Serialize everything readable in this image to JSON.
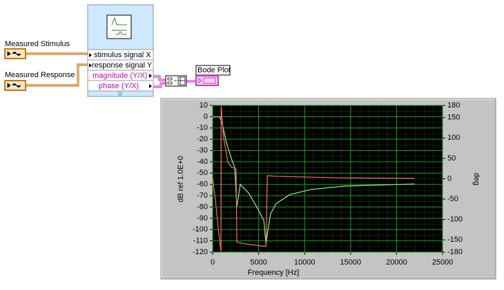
{
  "diagram": {
    "controls": [
      {
        "label": "Measured Stimulus"
      },
      {
        "label": "Measured Response"
      }
    ],
    "node_terminals": [
      "stimulus signal X",
      "response signal Y",
      "magnitude (Y/X)",
      "phase (Y/X)"
    ],
    "indicator": "Bode Plot"
  },
  "graph": {
    "type": "line",
    "x_label": "Frequency [Hz]",
    "y_label": "dB ref 1.0E+0",
    "y2_label": "deg",
    "xlim": [
      0,
      25000
    ],
    "xticks": [
      0,
      5000,
      10000,
      15000,
      20000,
      25000
    ],
    "ylim": [
      -120,
      10
    ],
    "yticks": [
      10,
      0,
      -10,
      -20,
      -30,
      -40,
      -50,
      -60,
      -70,
      -80,
      -90,
      -100,
      -110,
      -120
    ],
    "y2lim": [
      -180,
      180
    ],
    "y2ticks": [
      180,
      150,
      100,
      50,
      0,
      -50,
      -100,
      -150,
      -180
    ],
    "grid": true,
    "series": [
      {
        "color": "#98f098",
        "x": [
          0,
          750,
          1050,
          1500,
          2030,
          2400,
          2630,
          3000,
          3900,
          4800,
          5570,
          5800,
          5940,
          6300,
          6900,
          8400,
          10700,
          14400,
          21950
        ],
        "values": [
          -0.4,
          0,
          -6.5,
          -23,
          -37,
          -45,
          -80,
          -60,
          -67.5,
          -80,
          -92,
          -113,
          -104,
          -86,
          -77,
          -69,
          -64.5,
          -61.5,
          -59.6
        ]
      },
      {
        "color": "#ff6a6a",
        "axis": "y2",
        "x": [
          0,
          300,
          600,
          900,
          920,
          1200,
          1650,
          2030,
          2550,
          2630,
          3900,
          5800,
          5940,
          6900,
          14400,
          21950
        ],
        "values": [
          2,
          -52,
          -119,
          -178,
          177,
          100,
          41,
          29,
          24,
          -156,
          -161,
          -166,
          7.5,
          6,
          2,
          1
        ]
      }
    ]
  }
}
